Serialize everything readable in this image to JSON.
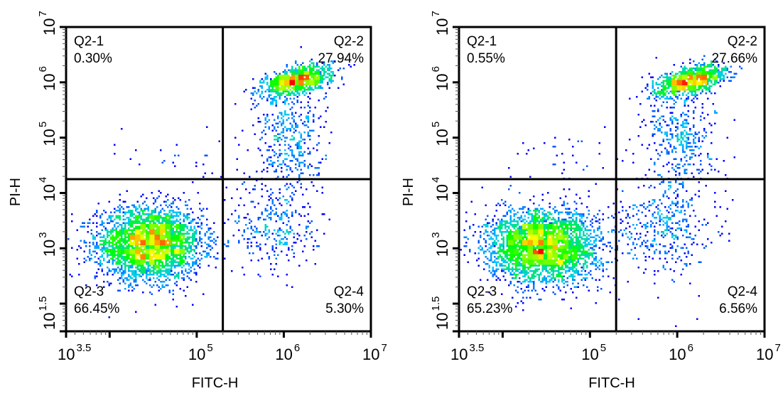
{
  "chart_data": [
    {
      "type": "scatter",
      "subtype": "flow-cytometry-density-dot-plot",
      "xlabel": "FITC-H",
      "ylabel": "PI-H",
      "x_scale": "log",
      "y_scale": "log",
      "xlim_log10": [
        3.5,
        7
      ],
      "ylim_log10": [
        1.5,
        7
      ],
      "x_ticks": [
        {
          "exp": "3.5",
          "v": 3.5
        },
        {
          "exp": "",
          "v": 4
        },
        {
          "exp": "5",
          "v": 5
        },
        {
          "exp": "6",
          "v": 6
        },
        {
          "exp": "7",
          "v": 7
        }
      ],
      "y_ticks": [
        {
          "exp": "1.5",
          "v": 1.5
        },
        {
          "exp": "",
          "v": 2
        },
        {
          "exp": "3",
          "v": 3
        },
        {
          "exp": "4",
          "v": 4
        },
        {
          "exp": "5",
          "v": 5
        },
        {
          "exp": "6",
          "v": 6
        },
        {
          "exp": "7",
          "v": 7
        }
      ],
      "gate_x_log10": 5.3,
      "gate_y_log10": 4.25,
      "quadrants": [
        {
          "name": "Q2-1",
          "percent": "0.30%",
          "position": "top-left"
        },
        {
          "name": "Q2-2",
          "percent": "27.94%",
          "position": "top-right"
        },
        {
          "name": "Q2-3",
          "percent": "66.45%",
          "position": "bottom-left"
        },
        {
          "name": "Q2-4",
          "percent": "5.30%",
          "position": "bottom-right"
        }
      ],
      "populations_log10": [
        {
          "cx": 4.45,
          "cy": 3.1,
          "sx": 0.3,
          "sy": 0.32,
          "fraction": 0.64
        },
        {
          "cx": 6.15,
          "cy": 6.05,
          "sx": 0.2,
          "sy": 0.12,
          "fraction": 0.2
        },
        {
          "cx": 6.05,
          "cy": 5.0,
          "sx": 0.2,
          "sy": 0.5,
          "fraction": 0.08
        },
        {
          "cx": 5.9,
          "cy": 3.4,
          "sx": 0.25,
          "sy": 0.45,
          "fraction": 0.06
        },
        {
          "cx": 4.9,
          "cy": 4.7,
          "sx": 0.35,
          "sy": 0.35,
          "fraction": 0.005
        }
      ]
    },
    {
      "type": "scatter",
      "subtype": "flow-cytometry-density-dot-plot",
      "xlabel": "FITC-H",
      "ylabel": "PI-H",
      "x_scale": "log",
      "y_scale": "log",
      "xlim_log10": [
        3.5,
        7
      ],
      "ylim_log10": [
        1.5,
        7
      ],
      "x_ticks": [
        {
          "exp": "3.5",
          "v": 3.5
        },
        {
          "exp": "",
          "v": 4
        },
        {
          "exp": "5",
          "v": 5
        },
        {
          "exp": "6",
          "v": 6
        },
        {
          "exp": "7",
          "v": 7
        }
      ],
      "y_ticks": [
        {
          "exp": "1.5",
          "v": 1.5
        },
        {
          "exp": "",
          "v": 2
        },
        {
          "exp": "3",
          "v": 3
        },
        {
          "exp": "4",
          "v": 4
        },
        {
          "exp": "5",
          "v": 5
        },
        {
          "exp": "6",
          "v": 6
        },
        {
          "exp": "7",
          "v": 7
        }
      ],
      "gate_x_log10": 5.3,
      "gate_y_log10": 4.25,
      "quadrants": [
        {
          "name": "Q2-1",
          "percent": "0.55%",
          "position": "top-left"
        },
        {
          "name": "Q2-2",
          "percent": "27.66%",
          "position": "top-right"
        },
        {
          "name": "Q2-3",
          "percent": "65.23%",
          "position": "bottom-left"
        },
        {
          "name": "Q2-4",
          "percent": "6.56%",
          "position": "bottom-right"
        }
      ],
      "populations_log10": [
        {
          "cx": 4.45,
          "cy": 3.05,
          "sx": 0.32,
          "sy": 0.33,
          "fraction": 0.63
        },
        {
          "cx": 6.15,
          "cy": 6.05,
          "sx": 0.2,
          "sy": 0.12,
          "fraction": 0.2
        },
        {
          "cx": 6.05,
          "cy": 5.0,
          "sx": 0.2,
          "sy": 0.5,
          "fraction": 0.075
        },
        {
          "cx": 5.85,
          "cy": 3.4,
          "sx": 0.28,
          "sy": 0.45,
          "fraction": 0.075
        },
        {
          "cx": 4.9,
          "cy": 4.7,
          "sx": 0.4,
          "sy": 0.35,
          "fraction": 0.008
        }
      ]
    }
  ],
  "colors": {
    "low": "#0000ff",
    "mid_low": "#00e5ff",
    "mid": "#00ff00",
    "mid_high": "#ffff00",
    "high": "#ff0000",
    "frame": "#000000"
  }
}
